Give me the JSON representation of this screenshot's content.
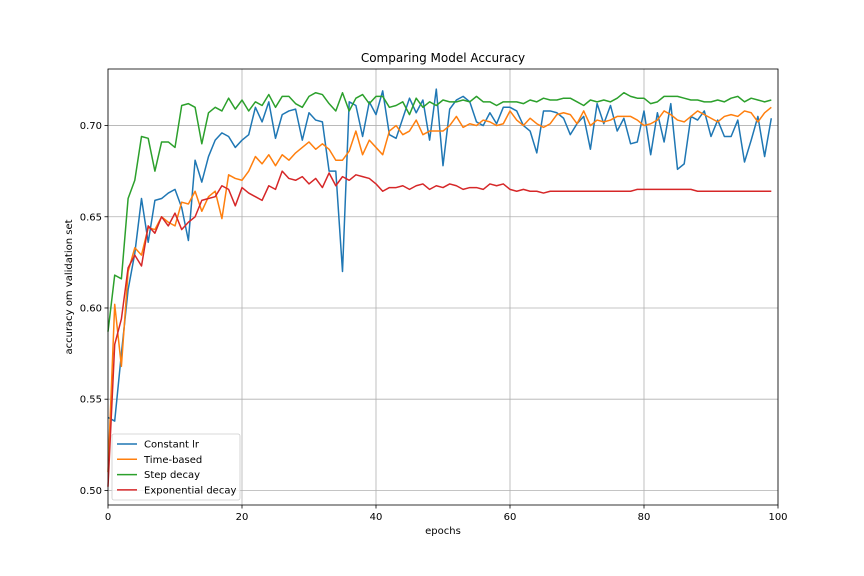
{
  "chart_data": {
    "type": "line",
    "title": "Comparing Model Accuracy",
    "xlabel": "epochs",
    "ylabel": "accuracy om validation set",
    "xlim": [
      0,
      100
    ],
    "ylim": [
      0.492,
      0.731
    ],
    "xticks": [
      0,
      20,
      40,
      60,
      80,
      100
    ],
    "yticks": [
      0.5,
      0.55,
      0.6,
      0.65,
      0.7
    ],
    "ytick_labels": [
      "0.50",
      "0.55",
      "0.60",
      "0.65",
      "0.70"
    ],
    "grid": true,
    "legend_position": "lower-left",
    "series": [
      {
        "name": "Constant lr",
        "color": "#1f77b4",
        "values": [
          0.54,
          0.538,
          0.575,
          0.61,
          0.63,
          0.66,
          0.636,
          0.659,
          0.66,
          0.663,
          0.665,
          0.655,
          0.637,
          0.681,
          0.669,
          0.683,
          0.692,
          0.696,
          0.694,
          0.688,
          0.692,
          0.695,
          0.71,
          0.702,
          0.713,
          0.693,
          0.706,
          0.708,
          0.709,
          0.692,
          0.707,
          0.703,
          0.702,
          0.675,
          0.675,
          0.62,
          0.713,
          0.711,
          0.694,
          0.713,
          0.706,
          0.719,
          0.695,
          0.693,
          0.704,
          0.715,
          0.707,
          0.714,
          0.692,
          0.72,
          0.678,
          0.709,
          0.714,
          0.716,
          0.713,
          0.702,
          0.7,
          0.707,
          0.701,
          0.71,
          0.71,
          0.708,
          0.7,
          0.697,
          0.685,
          0.708,
          0.708,
          0.707,
          0.704,
          0.695,
          0.701,
          0.705,
          0.687,
          0.712,
          0.701,
          0.711,
          0.697,
          0.704,
          0.69,
          0.691,
          0.708,
          0.684,
          0.707,
          0.691,
          0.712,
          0.676,
          0.679,
          0.705,
          0.703,
          0.708,
          0.694,
          0.703,
          0.694,
          0.694,
          0.703,
          0.68,
          0.692,
          0.705,
          0.683,
          0.704
        ]
      },
      {
        "name": "Time-based",
        "color": "#ff7f0e",
        "values": [
          0.51,
          0.602,
          0.568,
          0.62,
          0.633,
          0.629,
          0.644,
          0.643,
          0.65,
          0.647,
          0.645,
          0.658,
          0.657,
          0.664,
          0.653,
          0.661,
          0.664,
          0.649,
          0.673,
          0.671,
          0.67,
          0.675,
          0.683,
          0.679,
          0.684,
          0.678,
          0.684,
          0.681,
          0.685,
          0.688,
          0.691,
          0.687,
          0.69,
          0.687,
          0.681,
          0.681,
          0.686,
          0.697,
          0.684,
          0.692,
          0.688,
          0.684,
          0.697,
          0.7,
          0.695,
          0.697,
          0.703,
          0.695,
          0.697,
          0.697,
          0.697,
          0.7,
          0.705,
          0.699,
          0.701,
          0.7,
          0.703,
          0.702,
          0.7,
          0.701,
          0.708,
          0.703,
          0.7,
          0.704,
          0.701,
          0.699,
          0.701,
          0.706,
          0.707,
          0.706,
          0.701,
          0.708,
          0.7,
          0.703,
          0.702,
          0.703,
          0.705,
          0.705,
          0.705,
          0.703,
          0.7,
          0.701,
          0.703,
          0.708,
          0.706,
          0.703,
          0.702,
          0.705,
          0.708,
          0.706,
          0.704,
          0.702,
          0.705,
          0.706,
          0.705,
          0.708,
          0.707,
          0.702,
          0.707,
          0.71
        ]
      },
      {
        "name": "Step decay",
        "color": "#2ca02c",
        "values": [
          0.587,
          0.618,
          0.616,
          0.66,
          0.67,
          0.694,
          0.693,
          0.675,
          0.691,
          0.691,
          0.688,
          0.711,
          0.712,
          0.71,
          0.69,
          0.707,
          0.71,
          0.708,
          0.715,
          0.709,
          0.714,
          0.708,
          0.713,
          0.711,
          0.717,
          0.71,
          0.716,
          0.716,
          0.712,
          0.71,
          0.716,
          0.718,
          0.717,
          0.712,
          0.708,
          0.718,
          0.708,
          0.715,
          0.717,
          0.712,
          0.716,
          0.716,
          0.71,
          0.711,
          0.713,
          0.706,
          0.715,
          0.71,
          0.713,
          0.711,
          0.714,
          0.713,
          0.713,
          0.714,
          0.713,
          0.716,
          0.713,
          0.713,
          0.711,
          0.713,
          0.713,
          0.713,
          0.712,
          0.714,
          0.713,
          0.715,
          0.714,
          0.714,
          0.715,
          0.715,
          0.713,
          0.711,
          0.714,
          0.713,
          0.714,
          0.713,
          0.715,
          0.718,
          0.716,
          0.715,
          0.715,
          0.712,
          0.713,
          0.716,
          0.716,
          0.716,
          0.715,
          0.714,
          0.714,
          0.713,
          0.713,
          0.714,
          0.713,
          0.715,
          0.716,
          0.713,
          0.715,
          0.714,
          0.713,
          0.714
        ]
      },
      {
        "name": "Exponential decay",
        "color": "#d62728",
        "values": [
          0.502,
          0.58,
          0.594,
          0.622,
          0.629,
          0.623,
          0.645,
          0.641,
          0.65,
          0.645,
          0.652,
          0.643,
          0.647,
          0.65,
          0.659,
          0.66,
          0.661,
          0.667,
          0.665,
          0.656,
          0.666,
          0.663,
          0.661,
          0.659,
          0.667,
          0.665,
          0.675,
          0.671,
          0.67,
          0.672,
          0.668,
          0.671,
          0.666,
          0.674,
          0.667,
          0.672,
          0.67,
          0.673,
          0.672,
          0.671,
          0.668,
          0.664,
          0.666,
          0.666,
          0.667,
          0.665,
          0.667,
          0.668,
          0.665,
          0.667,
          0.666,
          0.668,
          0.667,
          0.665,
          0.666,
          0.666,
          0.665,
          0.668,
          0.667,
          0.668,
          0.665,
          0.664,
          0.665,
          0.664,
          0.664,
          0.663,
          0.664,
          0.664,
          0.664,
          0.664,
          0.664,
          0.664,
          0.664,
          0.664,
          0.664,
          0.664,
          0.664,
          0.664,
          0.664,
          0.665,
          0.665,
          0.665,
          0.665,
          0.665,
          0.665,
          0.665,
          0.665,
          0.665,
          0.664,
          0.664,
          0.664,
          0.664,
          0.664,
          0.664,
          0.664,
          0.664,
          0.664,
          0.664,
          0.664,
          0.664
        ]
      }
    ]
  }
}
